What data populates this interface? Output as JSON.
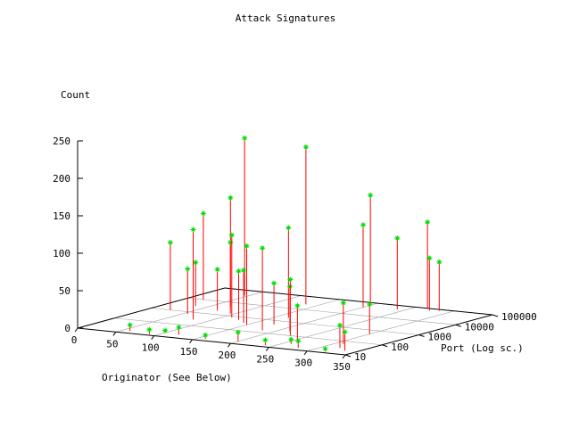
{
  "chart_data": {
    "type": "scatter",
    "title": "Attack Signatures",
    "zlabel": "Count",
    "xlabel": "Originator (See Below)",
    "ylabel": "Port (Log sc.)",
    "x_ticks": [
      "0",
      "50",
      "100",
      "150",
      "200",
      "250",
      "300",
      "350"
    ],
    "y_ticks": [
      "10",
      "100",
      "1000",
      "10000",
      "100000"
    ],
    "z_ticks": [
      "0",
      "50",
      "100",
      "150",
      "200",
      "250"
    ],
    "xlim": [
      0,
      350
    ],
    "ylim": [
      10,
      100000
    ],
    "zlim": [
      0,
      250
    ],
    "y_scale": "log",
    "grid": true,
    "colors": {
      "impulse": "#ff0000",
      "point": "#00dd00",
      "axis": "#000000",
      "grid": "#a0a0a0"
    },
    "points": [
      {
        "x": 20,
        "y": 10000,
        "z": 115
      },
      {
        "x": 25,
        "y": 1000,
        "z": 90
      },
      {
        "x": 35,
        "y": 3000,
        "z": 58
      },
      {
        "x": 45,
        "y": 40000,
        "z": 210
      },
      {
        "x": 55,
        "y": 700,
        "z": 60
      },
      {
        "x": 70,
        "y": 5000,
        "z": 145
      },
      {
        "x": 72,
        "y": 2000,
        "z": 55
      },
      {
        "x": 80,
        "y": 300,
        "z": 120
      },
      {
        "x": 95,
        "y": 1500,
        "z": 95
      },
      {
        "x": 110,
        "y": 800,
        "z": 110
      },
      {
        "x": 125,
        "y": 600,
        "z": 65
      },
      {
        "x": 135,
        "y": 25000,
        "z": 210
      },
      {
        "x": 140,
        "y": 400,
        "z": 70
      },
      {
        "x": 150,
        "y": 300,
        "z": 105
      },
      {
        "x": 165,
        "y": 2000,
        "z": 120
      },
      {
        "x": 175,
        "y": 500,
        "z": 55
      },
      {
        "x": 185,
        "y": 150,
        "z": 110
      },
      {
        "x": 195,
        "y": 80000,
        "z": 145
      },
      {
        "x": 200,
        "y": 40000,
        "z": 110
      },
      {
        "x": 215,
        "y": 200,
        "z": 60
      },
      {
        "x": 230,
        "y": 100,
        "z": 75
      },
      {
        "x": 240,
        "y": 50000,
        "z": 95
      },
      {
        "x": 250,
        "y": 60,
        "z": 45
      },
      {
        "x": 265,
        "y": 100000,
        "z": 115
      },
      {
        "x": 275,
        "y": 70000,
        "z": 70
      },
      {
        "x": 285,
        "y": 80000,
        "z": 65
      },
      {
        "x": 300,
        "y": 500,
        "z": 40
      },
      {
        "x": 310,
        "y": 60,
        "z": 55
      },
      {
        "x": 320,
        "y": 30,
        "z": 30
      },
      {
        "x": 335,
        "y": 20,
        "z": 25
      },
      {
        "x": 60,
        "y": 15,
        "z": 8
      },
      {
        "x": 90,
        "y": 12,
        "z": 6
      },
      {
        "x": 120,
        "y": 18,
        "z": 10
      },
      {
        "x": 160,
        "y": 14,
        "z": 5
      },
      {
        "x": 200,
        "y": 16,
        "z": 12
      },
      {
        "x": 240,
        "y": 13,
        "z": 7
      },
      {
        "x": 280,
        "y": 15,
        "z": 9
      },
      {
        "x": 320,
        "y": 12,
        "z": 4
      },
      {
        "x": 100,
        "y": 20,
        "z": 3
      },
      {
        "x": 260,
        "y": 25,
        "z": 6
      }
    ]
  }
}
